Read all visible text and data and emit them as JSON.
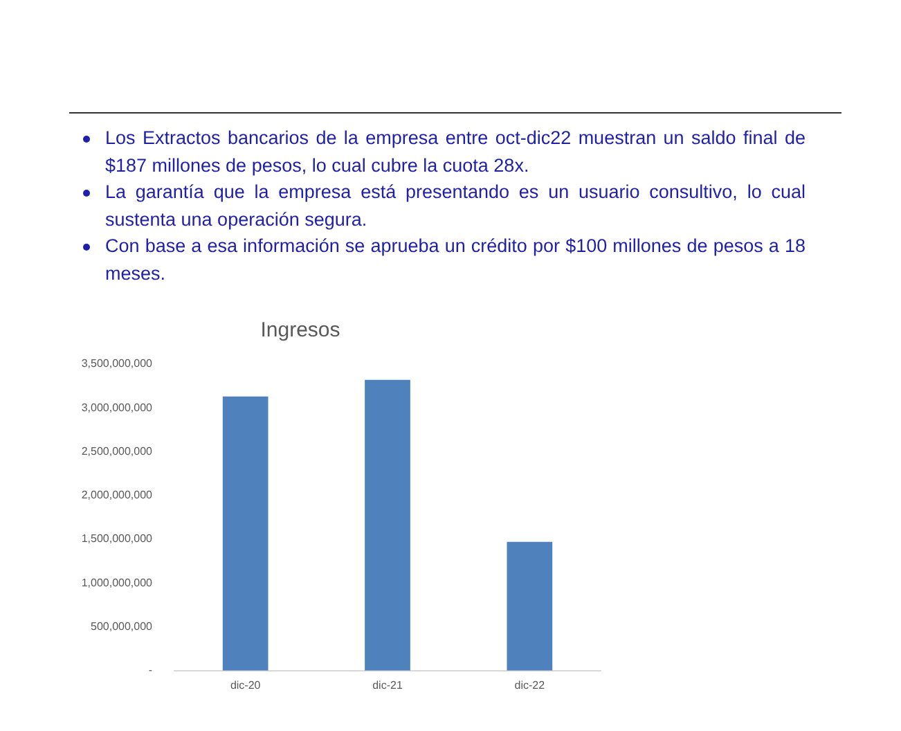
{
  "chart_data": {
    "type": "bar",
    "title": "Ingresos",
    "annotations": [
      "Los Extractos bancarios de la empresa entre oct-dic22 muestran un saldo final de $187 millones de pesos, lo cual cubre la cuota 28x.",
      "La garantía que la empresa está presentando es un usuario consultivo, lo cual sustenta una operación segura.",
      "Con base a esa información se aprueba un crédito por $100 millones de pesos a 18 meses."
    ],
    "categories": [
      "dic-20",
      "dic-21",
      "dic-22"
    ],
    "values": [
      3130000000,
      3320000000,
      1470000000
    ],
    "color": "#4f81bd",
    "ylim": [
      0,
      3500000000
    ],
    "yticks": [
      {
        "value": 0,
        "label": "-"
      },
      {
        "value": 500000000,
        "label": "500,000,000"
      },
      {
        "value": 1000000000,
        "label": "1,000,000,000"
      },
      {
        "value": 1500000000,
        "label": "1,500,000,000"
      },
      {
        "value": 2000000000,
        "label": "2,000,000,000"
      },
      {
        "value": 2500000000,
        "label": "2,500,000,000"
      },
      {
        "value": 3000000000,
        "label": "3,000,000,000"
      },
      {
        "value": 3500000000,
        "label": "3,500,000,000"
      }
    ],
    "grid": false,
    "legend": false
  }
}
